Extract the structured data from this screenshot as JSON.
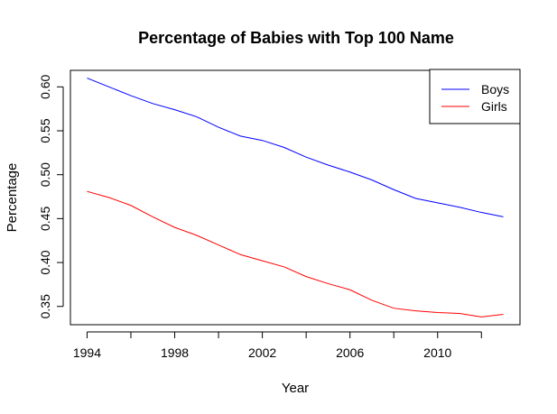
{
  "chart_data": {
    "type": "line",
    "title": "Percentage of Babies with Top 100 Name",
    "xlabel": "Year",
    "ylabel": "Percentage",
    "x": [
      1994,
      1995,
      1996,
      1997,
      1998,
      1999,
      2000,
      2001,
      2002,
      2003,
      2004,
      2005,
      2006,
      2007,
      2008,
      2009,
      2010,
      2011,
      2012,
      2013
    ],
    "series": [
      {
        "name": "Boys",
        "color": "#0000ff",
        "values": [
          0.61,
          0.6,
          0.59,
          0.581,
          0.574,
          0.566,
          0.554,
          0.544,
          0.539,
          0.531,
          0.52,
          0.511,
          0.503,
          0.494,
          0.483,
          0.473,
          0.468,
          0.463,
          0.457,
          0.452
        ]
      },
      {
        "name": "Girls",
        "color": "#ff0000",
        "values": [
          0.481,
          0.474,
          0.465,
          0.452,
          0.44,
          0.431,
          0.42,
          0.409,
          0.402,
          0.395,
          0.384,
          0.376,
          0.369,
          0.357,
          0.348,
          0.345,
          0.343,
          0.342,
          0.338,
          0.341
        ]
      }
    ],
    "xlim": [
      1993.24,
      2013.76
    ],
    "ylim": [
      0.3292,
      0.6188
    ],
    "xticks": [
      "1994",
      "1998",
      "2002",
      "2006",
      "2010"
    ],
    "xtick_values": [
      1994,
      1996,
      1998,
      2000,
      2002,
      2004,
      2006,
      2008,
      2010,
      2012
    ],
    "xtick_labeled": [
      1994,
      1998,
      2002,
      2006,
      2010
    ],
    "yticks": [
      "0.35",
      "0.40",
      "0.45",
      "0.50",
      "0.55",
      "0.60"
    ],
    "ytick_values": [
      0.35,
      0.4,
      0.45,
      0.5,
      0.55,
      0.6
    ],
    "legend": "top-right",
    "grid": false
  }
}
